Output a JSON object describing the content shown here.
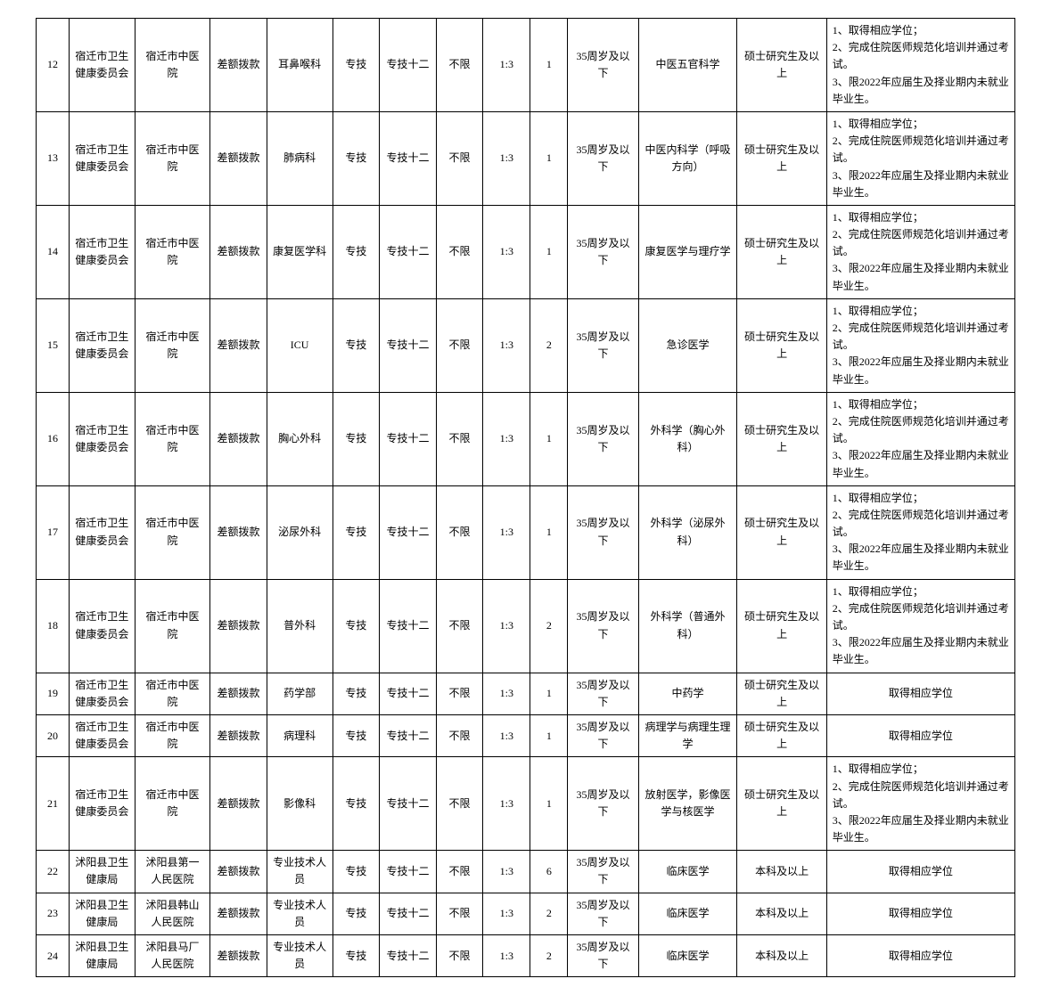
{
  "rows": [
    {
      "no": "12",
      "dept": "宿迁市卫生健康委员会",
      "unit": "宿迁市中医院",
      "fund": "差额拨款",
      "post": "耳鼻喉科",
      "cat": "专技",
      "level": "专技十二",
      "other": "不限",
      "ratio": "1:3",
      "num": "1",
      "age": "35周岁及以下",
      "major": "中医五官科学",
      "edu": "硕士研究生及以上",
      "req": "1、取得相应学位；\n2、完成住院医师规范化培训并通过考试。\n3、限2022年应届生及择业期内未就业毕业生。"
    },
    {
      "no": "13",
      "dept": "宿迁市卫生健康委员会",
      "unit": "宿迁市中医院",
      "fund": "差额拨款",
      "post": "肺病科",
      "cat": "专技",
      "level": "专技十二",
      "other": "不限",
      "ratio": "1:3",
      "num": "1",
      "age": "35周岁及以下",
      "major": "中医内科学（呼吸方向）",
      "edu": "硕士研究生及以上",
      "req": "1、取得相应学位；\n2、完成住院医师规范化培训并通过考试。\n3、限2022年应届生及择业期内未就业毕业生。"
    },
    {
      "no": "14",
      "dept": "宿迁市卫生健康委员会",
      "unit": "宿迁市中医院",
      "fund": "差额拨款",
      "post": "康复医学科",
      "cat": "专技",
      "level": "专技十二",
      "other": "不限",
      "ratio": "1:3",
      "num": "1",
      "age": "35周岁及以下",
      "major": "康复医学与理疗学",
      "edu": "硕士研究生及以上",
      "req": "1、取得相应学位；\n2、完成住院医师规范化培训并通过考试。\n3、限2022年应届生及择业期内未就业毕业生。"
    },
    {
      "no": "15",
      "dept": "宿迁市卫生健康委员会",
      "unit": "宿迁市中医院",
      "fund": "差额拨款",
      "post": "ICU",
      "cat": "专技",
      "level": "专技十二",
      "other": "不限",
      "ratio": "1:3",
      "num": "2",
      "age": "35周岁及以下",
      "major": "急诊医学",
      "edu": "硕士研究生及以上",
      "req": "1、取得相应学位；\n2、完成住院医师规范化培训并通过考试。\n3、限2022年应届生及择业期内未就业毕业生。"
    },
    {
      "no": "16",
      "dept": "宿迁市卫生健康委员会",
      "unit": "宿迁市中医院",
      "fund": "差额拨款",
      "post": "胸心外科",
      "cat": "专技",
      "level": "专技十二",
      "other": "不限",
      "ratio": "1:3",
      "num": "1",
      "age": "35周岁及以下",
      "major": "外科学（胸心外科）",
      "edu": "硕士研究生及以上",
      "req": "1、取得相应学位；\n2、完成住院医师规范化培训并通过考试。\n3、限2022年应届生及择业期内未就业毕业生。"
    },
    {
      "no": "17",
      "dept": "宿迁市卫生健康委员会",
      "unit": "宿迁市中医院",
      "fund": "差额拨款",
      "post": "泌尿外科",
      "cat": "专技",
      "level": "专技十二",
      "other": "不限",
      "ratio": "1:3",
      "num": "1",
      "age": "35周岁及以下",
      "major": "外科学（泌尿外科）",
      "edu": "硕士研究生及以上",
      "req": "1、取得相应学位；\n2、完成住院医师规范化培训并通过考试。\n3、限2022年应届生及择业期内未就业毕业生。"
    },
    {
      "no": "18",
      "dept": "宿迁市卫生健康委员会",
      "unit": "宿迁市中医院",
      "fund": "差额拨款",
      "post": "普外科",
      "cat": "专技",
      "level": "专技十二",
      "other": "不限",
      "ratio": "1:3",
      "num": "2",
      "age": "35周岁及以下",
      "major": "外科学（普通外科）",
      "edu": "硕士研究生及以上",
      "req": "1、取得相应学位；\n2、完成住院医师规范化培训并通过考试。\n3、限2022年应届生及择业期内未就业毕业生。"
    },
    {
      "no": "19",
      "dept": "宿迁市卫生健康委员会",
      "unit": "宿迁市中医院",
      "fund": "差额拨款",
      "post": "药学部",
      "cat": "专技",
      "level": "专技十二",
      "other": "不限",
      "ratio": "1:3",
      "num": "1",
      "age": "35周岁及以下",
      "major": "中药学",
      "edu": "硕士研究生及以上",
      "req": "取得相应学位"
    },
    {
      "no": "20",
      "dept": "宿迁市卫生健康委员会",
      "unit": "宿迁市中医院",
      "fund": "差额拨款",
      "post": "病理科",
      "cat": "专技",
      "level": "专技十二",
      "other": "不限",
      "ratio": "1:3",
      "num": "1",
      "age": "35周岁及以下",
      "major": "病理学与病理生理学",
      "edu": "硕士研究生及以上",
      "req": "取得相应学位"
    },
    {
      "no": "21",
      "dept": "宿迁市卫生健康委员会",
      "unit": "宿迁市中医院",
      "fund": "差额拨款",
      "post": "影像科",
      "cat": "专技",
      "level": "专技十二",
      "other": "不限",
      "ratio": "1:3",
      "num": "1",
      "age": "35周岁及以下",
      "major": "放射医学，影像医学与核医学",
      "edu": "硕士研究生及以上",
      "req": "1、取得相应学位；\n2、完成住院医师规范化培训并通过考试。\n3、限2022年应届生及择业期内未就业毕业生。"
    },
    {
      "no": "22",
      "dept": "沭阳县卫生健康局",
      "unit": "沭阳县第一人民医院",
      "fund": "差额拨款",
      "post": "专业技术人员",
      "cat": "专技",
      "level": "专技十二",
      "other": "不限",
      "ratio": "1:3",
      "num": "6",
      "age": "35周岁及以下",
      "major": "临床医学",
      "edu": "本科及以上",
      "req": "取得相应学位"
    },
    {
      "no": "23",
      "dept": "沭阳县卫生健康局",
      "unit": "沭阳县韩山人民医院",
      "fund": "差额拨款",
      "post": "专业技术人员",
      "cat": "专技",
      "level": "专技十二",
      "other": "不限",
      "ratio": "1:3",
      "num": "2",
      "age": "35周岁及以下",
      "major": "临床医学",
      "edu": "本科及以上",
      "req": "取得相应学位"
    },
    {
      "no": "24",
      "dept": "沭阳县卫生健康局",
      "unit": "沭阳县马厂人民医院",
      "fund": "差额拨款",
      "post": "专业技术人员",
      "cat": "专技",
      "level": "专技十二",
      "other": "不限",
      "ratio": "1:3",
      "num": "2",
      "age": "35周岁及以下",
      "major": "临床医学",
      "edu": "本科及以上",
      "req": "取得相应学位"
    }
  ],
  "req_align": {
    "left_rows": [
      "12",
      "13",
      "14",
      "15",
      "16",
      "17",
      "18",
      "21"
    ],
    "center_rows": [
      "19",
      "20",
      "22",
      "23",
      "24"
    ]
  }
}
